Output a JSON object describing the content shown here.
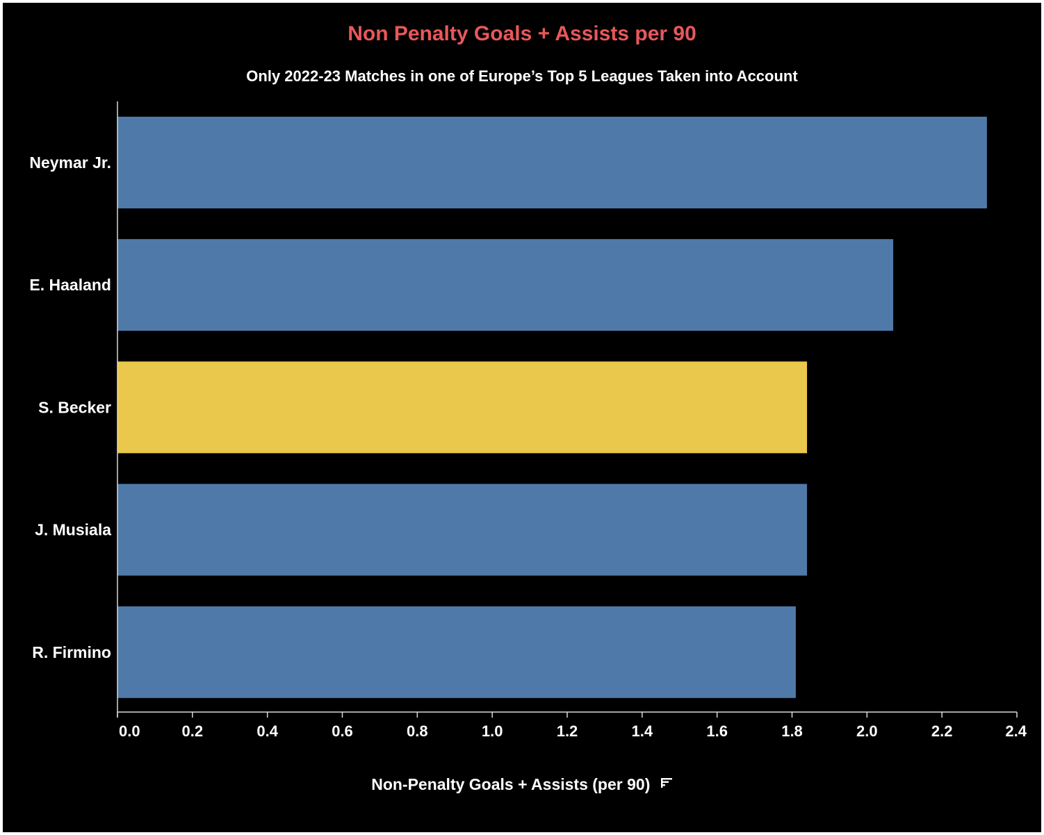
{
  "chart_data": {
    "type": "bar",
    "orientation": "horizontal",
    "title": "Non Penalty Goals + Assists per 90",
    "subtitle": "Only 2022-23 Matches in one of Europe’s Top 5 Leagues Taken into Account",
    "xlabel": "Non-Penalty Goals + Assists (per 90)",
    "ylabel": "",
    "categories": [
      "Neymar Jr.",
      "E. Haaland",
      "S. Becker",
      "J. Musiala",
      "R. Firmino"
    ],
    "values": [
      2.32,
      2.07,
      1.84,
      1.84,
      1.81
    ],
    "highlight": "S. Becker",
    "xlim": [
      0,
      2.4
    ],
    "xticks": [
      "0.0",
      "0.2",
      "0.4",
      "0.6",
      "0.8",
      "1.0",
      "1.2",
      "1.4",
      "1.6",
      "1.8",
      "2.0",
      "2.2",
      "2.4"
    ],
    "grid": false,
    "colors": {
      "bar": "#4f79a8",
      "highlight": "#eac84b",
      "title": "#e8585a",
      "text": "#ffffff",
      "background": "#000000"
    }
  },
  "icons": {
    "xlabel_icon": "sort-descending-icon"
  }
}
